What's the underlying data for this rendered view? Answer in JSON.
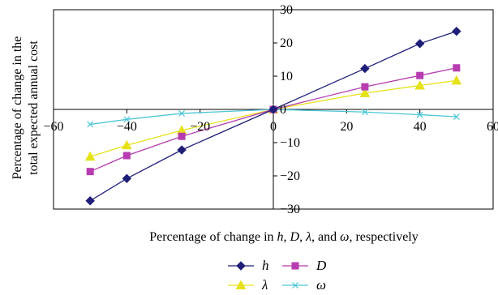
{
  "chart_data": {
    "type": "line",
    "xlabel": {
      "parts": [
        {
          "text": "Percentage of change in ",
          "italic": false
        },
        {
          "text": "h",
          "italic": true
        },
        {
          "text": ", ",
          "italic": false
        },
        {
          "text": "D",
          "italic": true
        },
        {
          "text": ", ",
          "italic": false
        },
        {
          "text": "λ",
          "italic": true
        },
        {
          "text": ", and ",
          "italic": false
        },
        {
          "text": "ω",
          "italic": true
        },
        {
          "text": ", respectively",
          "italic": false
        }
      ]
    },
    "ylabel_lines": [
      "Percentage of change in the",
      "total expected annual cost"
    ],
    "xlim": [
      -60,
      60
    ],
    "ylim": [
      -30,
      30
    ],
    "x_ticks": [
      -60,
      -40,
      -20,
      0,
      20,
      40,
      60
    ],
    "y_ticks": [
      -30,
      -20,
      -10,
      0,
      10,
      20,
      30
    ],
    "legend_placement": "bottom",
    "series": [
      {
        "name": "h",
        "color": "#1f1f7a",
        "marker": "diamond",
        "points": [
          [
            -50,
            -27.5
          ],
          [
            -40,
            -20.8
          ],
          [
            -25,
            -12.2
          ],
          [
            0,
            0
          ],
          [
            25,
            12.3
          ],
          [
            40,
            19.8
          ],
          [
            50,
            23.5
          ]
        ]
      },
      {
        "name": "D",
        "color": "#b63cb0",
        "marker": "square",
        "points": [
          [
            -50,
            -18.7
          ],
          [
            -40,
            -13.9
          ],
          [
            -25,
            -8.1
          ],
          [
            0,
            0
          ],
          [
            25,
            6.8
          ],
          [
            40,
            10.2
          ],
          [
            50,
            12.5
          ]
        ]
      },
      {
        "name": "λ",
        "color": "#e6e21a",
        "marker": "triangle",
        "points": [
          [
            -50,
            -14.2
          ],
          [
            -40,
            -10.8
          ],
          [
            -25,
            -6.3
          ],
          [
            0,
            0
          ],
          [
            25,
            4.9
          ],
          [
            40,
            7.2
          ],
          [
            50,
            8.7
          ]
        ]
      },
      {
        "name": "ω",
        "color": "#4cc6d6",
        "marker": "x",
        "points": [
          [
            -50,
            -4.5
          ],
          [
            -40,
            -3.0
          ],
          [
            -25,
            -1.2
          ],
          [
            0,
            0
          ],
          [
            25,
            -0.8
          ],
          [
            40,
            -1.6
          ],
          [
            50,
            -2.2
          ]
        ]
      }
    ]
  }
}
